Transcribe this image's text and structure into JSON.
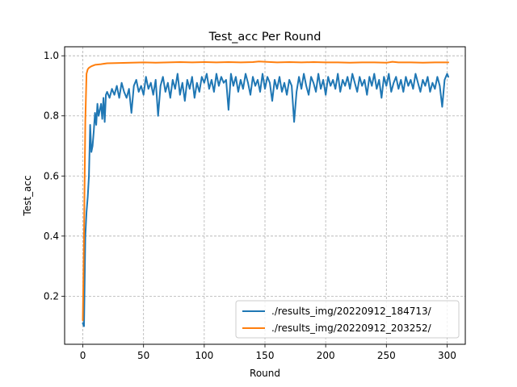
{
  "chart_data": {
    "type": "line",
    "title": "Test_acc Per Round",
    "xlabel": "Round",
    "ylabel": "Test_acc",
    "xlim": [
      -15,
      315
    ],
    "ylim": [
      0.04,
      1.03
    ],
    "xticks": [
      0,
      50,
      100,
      150,
      200,
      250,
      300
    ],
    "yticks": [
      0.2,
      0.4,
      0.6,
      0.8,
      1.0
    ],
    "xtick_labels": [
      "0",
      "50",
      "100",
      "150",
      "200",
      "250",
      "300"
    ],
    "ytick_labels": [
      "0.2",
      "0.4",
      "0.6",
      "0.8",
      "1.0"
    ],
    "grid": true,
    "grid_style": "dashed",
    "legend_position": "lower right",
    "series": [
      {
        "name": "./results_img/20220912_184713/",
        "color": "#1f77b4",
        "points": [
          [
            0,
            0.11
          ],
          [
            1,
            0.1
          ],
          [
            2,
            0.4
          ],
          [
            3,
            0.48
          ],
          [
            4,
            0.53
          ],
          [
            5,
            0.6
          ],
          [
            6,
            0.77
          ],
          [
            7,
            0.68
          ],
          [
            8,
            0.7
          ],
          [
            9,
            0.75
          ],
          [
            10,
            0.81
          ],
          [
            11,
            0.77
          ],
          [
            12,
            0.84
          ],
          [
            13,
            0.8
          ],
          [
            14,
            0.82
          ],
          [
            15,
            0.84
          ],
          [
            16,
            0.79
          ],
          [
            17,
            0.86
          ],
          [
            18,
            0.78
          ],
          [
            19,
            0.87
          ],
          [
            20,
            0.88
          ],
          [
            22,
            0.86
          ],
          [
            24,
            0.89
          ],
          [
            26,
            0.87
          ],
          [
            28,
            0.9
          ],
          [
            30,
            0.86
          ],
          [
            32,
            0.91
          ],
          [
            34,
            0.88
          ],
          [
            36,
            0.86
          ],
          [
            38,
            0.89
          ],
          [
            40,
            0.81
          ],
          [
            42,
            0.9
          ],
          [
            44,
            0.92
          ],
          [
            46,
            0.88
          ],
          [
            48,
            0.9
          ],
          [
            50,
            0.87
          ],
          [
            52,
            0.93
          ],
          [
            54,
            0.89
          ],
          [
            56,
            0.91
          ],
          [
            58,
            0.87
          ],
          [
            60,
            0.92
          ],
          [
            62,
            0.8
          ],
          [
            64,
            0.9
          ],
          [
            66,
            0.93
          ],
          [
            68,
            0.88
          ],
          [
            70,
            0.91
          ],
          [
            72,
            0.86
          ],
          [
            74,
            0.92
          ],
          [
            76,
            0.89
          ],
          [
            78,
            0.94
          ],
          [
            80,
            0.87
          ],
          [
            82,
            0.91
          ],
          [
            84,
            0.85
          ],
          [
            86,
            0.92
          ],
          [
            88,
            0.89
          ],
          [
            90,
            0.93
          ],
          [
            92,
            0.86
          ],
          [
            94,
            0.91
          ],
          [
            96,
            0.88
          ],
          [
            98,
            0.93
          ],
          [
            100,
            0.91
          ],
          [
            102,
            0.94
          ],
          [
            104,
            0.89
          ],
          [
            106,
            0.92
          ],
          [
            108,
            0.88
          ],
          [
            110,
            0.94
          ],
          [
            112,
            0.9
          ],
          [
            114,
            0.93
          ],
          [
            116,
            0.91
          ],
          [
            118,
            0.92
          ],
          [
            120,
            0.82
          ],
          [
            122,
            0.94
          ],
          [
            124,
            0.9
          ],
          [
            126,
            0.93
          ],
          [
            128,
            0.88
          ],
          [
            130,
            0.92
          ],
          [
            132,
            0.89
          ],
          [
            134,
            0.94
          ],
          [
            136,
            0.91
          ],
          [
            138,
            0.87
          ],
          [
            140,
            0.93
          ],
          [
            142,
            0.9
          ],
          [
            144,
            0.92
          ],
          [
            146,
            0.88
          ],
          [
            148,
            0.94
          ],
          [
            150,
            0.89
          ],
          [
            152,
            0.93
          ],
          [
            154,
            0.91
          ],
          [
            156,
            0.85
          ],
          [
            158,
            0.92
          ],
          [
            160,
            0.89
          ],
          [
            162,
            0.93
          ],
          [
            164,
            0.88
          ],
          [
            166,
            0.91
          ],
          [
            168,
            0.87
          ],
          [
            170,
            0.92
          ],
          [
            172,
            0.9
          ],
          [
            174,
            0.78
          ],
          [
            176,
            0.88
          ],
          [
            178,
            0.93
          ],
          [
            180,
            0.89
          ],
          [
            182,
            0.94
          ],
          [
            184,
            0.9
          ],
          [
            186,
            0.87
          ],
          [
            188,
            0.93
          ],
          [
            190,
            0.91
          ],
          [
            192,
            0.88
          ],
          [
            194,
            0.94
          ],
          [
            196,
            0.89
          ],
          [
            198,
            0.92
          ],
          [
            200,
            0.87
          ],
          [
            202,
            0.93
          ],
          [
            204,
            0.9
          ],
          [
            206,
            0.92
          ],
          [
            208,
            0.89
          ],
          [
            210,
            0.94
          ],
          [
            212,
            0.88
          ],
          [
            214,
            0.92
          ],
          [
            216,
            0.9
          ],
          [
            218,
            0.93
          ],
          [
            220,
            0.89
          ],
          [
            222,
            0.94
          ],
          [
            224,
            0.91
          ],
          [
            226,
            0.88
          ],
          [
            228,
            0.93
          ],
          [
            230,
            0.9
          ],
          [
            232,
            0.92
          ],
          [
            234,
            0.87
          ],
          [
            236,
            0.93
          ],
          [
            238,
            0.9
          ],
          [
            240,
            0.94
          ],
          [
            242,
            0.89
          ],
          [
            244,
            0.92
          ],
          [
            246,
            0.86
          ],
          [
            248,
            0.93
          ],
          [
            250,
            0.9
          ],
          [
            252,
            0.94
          ],
          [
            254,
            0.88
          ],
          [
            256,
            0.91
          ],
          [
            258,
            0.93
          ],
          [
            260,
            0.89
          ],
          [
            262,
            0.92
          ],
          [
            264,
            0.88
          ],
          [
            266,
            0.93
          ],
          [
            268,
            0.9
          ],
          [
            270,
            0.92
          ],
          [
            272,
            0.89
          ],
          [
            274,
            0.94
          ],
          [
            276,
            0.91
          ],
          [
            278,
            0.88
          ],
          [
            280,
            0.92
          ],
          [
            282,
            0.9
          ],
          [
            284,
            0.93
          ],
          [
            286,
            0.88
          ],
          [
            288,
            0.91
          ],
          [
            290,
            0.89
          ],
          [
            292,
            0.93
          ],
          [
            294,
            0.9
          ],
          [
            296,
            0.83
          ],
          [
            298,
            0.92
          ],
          [
            300,
            0.94
          ],
          [
            301,
            0.93
          ]
        ]
      },
      {
        "name": "./results_img/20220912_203252/",
        "color": "#ff7f0e",
        "points": [
          [
            0,
            0.12
          ],
          [
            1,
            0.4
          ],
          [
            2,
            0.78
          ],
          [
            3,
            0.94
          ],
          [
            4,
            0.955
          ],
          [
            5,
            0.96
          ],
          [
            7,
            0.965
          ],
          [
            10,
            0.97
          ],
          [
            15,
            0.972
          ],
          [
            20,
            0.975
          ],
          [
            30,
            0.976
          ],
          [
            40,
            0.977
          ],
          [
            50,
            0.978
          ],
          [
            60,
            0.977
          ],
          [
            70,
            0.978
          ],
          [
            80,
            0.979
          ],
          [
            90,
            0.978
          ],
          [
            100,
            0.979
          ],
          [
            110,
            0.978
          ],
          [
            120,
            0.979
          ],
          [
            130,
            0.978
          ],
          [
            140,
            0.979
          ],
          [
            145,
            0.981
          ],
          [
            150,
            0.98
          ],
          [
            160,
            0.978
          ],
          [
            170,
            0.979
          ],
          [
            180,
            0.978
          ],
          [
            190,
            0.979
          ],
          [
            200,
            0.978
          ],
          [
            210,
            0.978
          ],
          [
            220,
            0.977
          ],
          [
            230,
            0.978
          ],
          [
            240,
            0.978
          ],
          [
            250,
            0.977
          ],
          [
            255,
            0.98
          ],
          [
            260,
            0.978
          ],
          [
            270,
            0.978
          ],
          [
            280,
            0.977
          ],
          [
            290,
            0.978
          ],
          [
            301,
            0.978
          ]
        ]
      }
    ]
  }
}
